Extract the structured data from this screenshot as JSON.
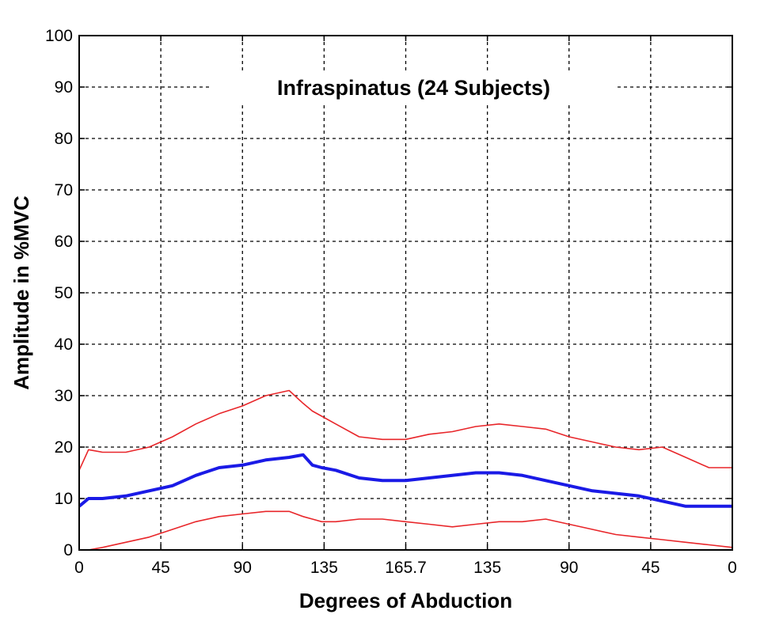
{
  "chart_data": {
    "type": "line",
    "title": "Infraspinatus (24 Subjects)",
    "xlabel": "Degrees of Abduction",
    "ylabel": "Amplitude in %MVC",
    "xlim": [
      0,
      7
    ],
    "ylim": [
      0,
      100
    ],
    "x_tick_labels": [
      "0",
      "45",
      "90",
      "135",
      "165.7",
      "135",
      "90",
      "45",
      "0"
    ],
    "y_ticks": [
      0,
      10,
      20,
      30,
      40,
      50,
      60,
      70,
      80,
      90,
      100
    ],
    "grid": true,
    "legend": null,
    "x": [
      0,
      0.1,
      0.25,
      0.5,
      0.75,
      1.0,
      1.25,
      1.5,
      1.75,
      2.0,
      2.25,
      2.4,
      2.5,
      2.6,
      2.75,
      3.0,
      3.25,
      3.5,
      3.75,
      4.0,
      4.25,
      4.5,
      4.75,
      5.0,
      5.25,
      5.5,
      5.75,
      6.0,
      6.25,
      6.5,
      6.75,
      7.0
    ],
    "series": [
      {
        "color": "#e8262a",
        "values": [
          15.5,
          19.5,
          19.0,
          19.0,
          20.0,
          22.0,
          24.5,
          26.5,
          28.0,
          30.0,
          31.0,
          28.5,
          27.0,
          26.0,
          24.5,
          22.0,
          21.5,
          21.5,
          22.5,
          23.0,
          24.0,
          24.5,
          24.0,
          23.5,
          22.0,
          21.0,
          20.0,
          19.5,
          20.0,
          18.0,
          16.0,
          16.0
        ]
      },
      {
        "color": "#1a1ae6",
        "values": [
          8.5,
          10.0,
          10.0,
          10.5,
          11.5,
          12.5,
          14.5,
          16.0,
          16.5,
          17.5,
          18.0,
          18.5,
          16.5,
          16.0,
          15.5,
          14.0,
          13.5,
          13.5,
          14.0,
          14.5,
          15.0,
          15.0,
          14.5,
          13.5,
          12.5,
          11.5,
          11.0,
          10.5,
          9.5,
          8.5,
          8.5,
          8.5
        ]
      },
      {
        "color": "#e8262a",
        "values": [
          0.0,
          0.0,
          0.5,
          1.5,
          2.5,
          4.0,
          5.5,
          6.5,
          7.0,
          7.5,
          7.5,
          6.5,
          6.0,
          5.5,
          5.5,
          6.0,
          6.0,
          5.5,
          5.0,
          4.5,
          5.0,
          5.5,
          5.5,
          6.0,
          5.0,
          4.0,
          3.0,
          2.5,
          2.0,
          1.5,
          1.0,
          0.5
        ]
      }
    ]
  }
}
